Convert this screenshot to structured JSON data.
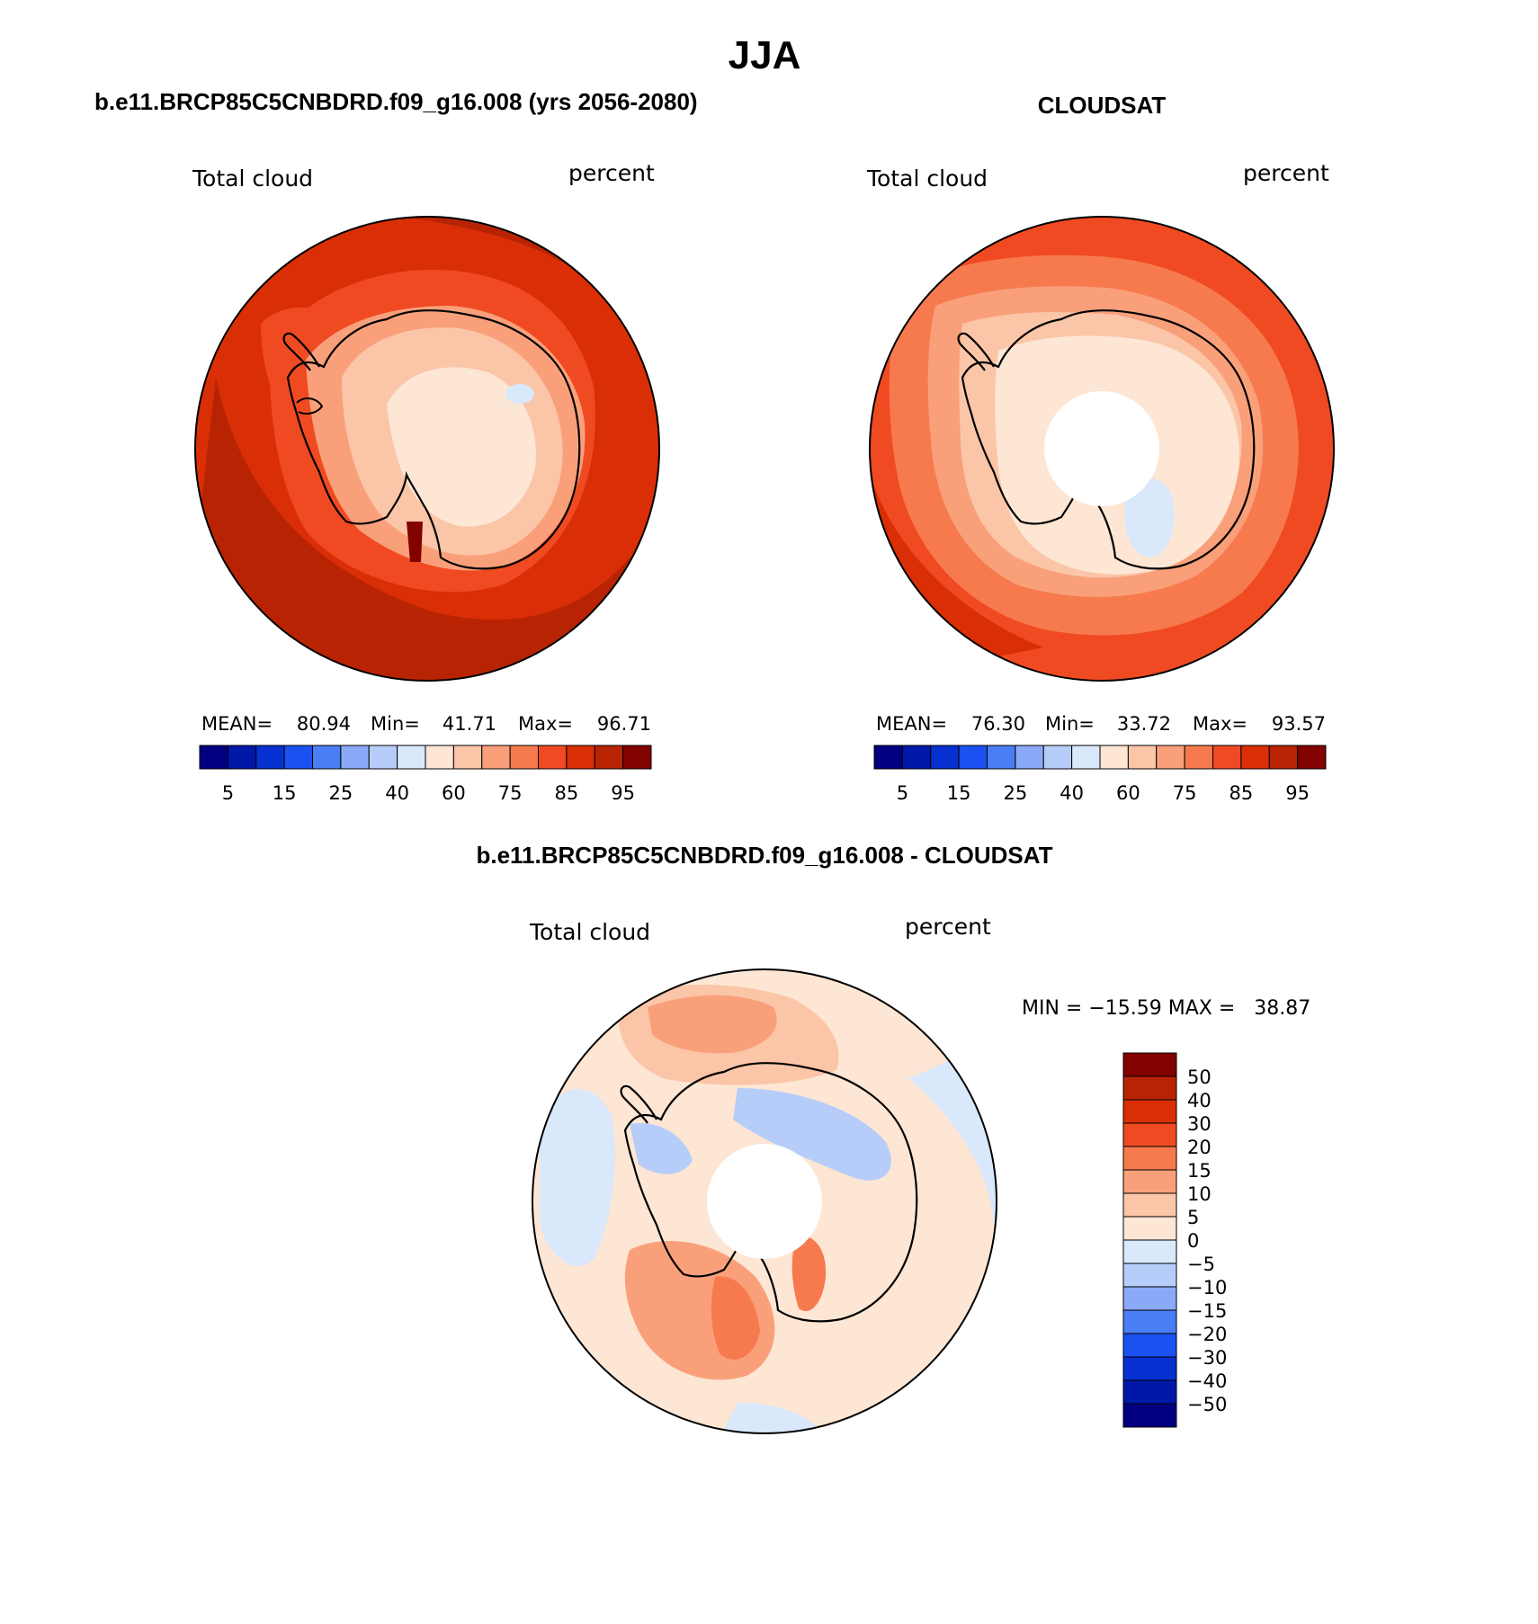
{
  "title": "JJA",
  "panels": [
    {
      "heading": "b.e11.BRCP85C5CNBDRD.f09_g16.008 (yrs 2056-2080)",
      "variable": "Total cloud",
      "units": "percent",
      "stats": {
        "mean_label": "MEAN=",
        "mean": "80.94",
        "min_label": "Min=",
        "min": "41.71",
        "max_label": "Max=",
        "max": "96.71"
      }
    },
    {
      "heading": "CLOUDSAT",
      "variable": "Total cloud",
      "units": "percent",
      "stats": {
        "mean_label": "MEAN=",
        "mean": "76.30",
        "min_label": "Min=",
        "min": "33.72",
        "max_label": "Max=",
        "max": "93.57"
      }
    }
  ],
  "diff_panel": {
    "heading": "b.e11.BRCP85C5CNBDRD.f09_g16.008 - CLOUDSAT",
    "variable": "Total cloud",
    "units": "percent",
    "minmax": "MIN = −15.59 MAX =   38.87"
  },
  "chart_data": [
    {
      "type": "heatmap",
      "projection": "south polar stereographic",
      "title": "b.e11.BRCP85C5CNBDRD.f09_g16.008 (yrs 2056-2080)",
      "variable": "Total cloud",
      "units": "percent",
      "mean": 80.94,
      "min": 41.71,
      "max": 96.71,
      "colorbar_levels": [
        5,
        10,
        15,
        20,
        25,
        30,
        40,
        50,
        60,
        70,
        75,
        80,
        85,
        90,
        95
      ],
      "colorbar_tick_labels": [
        "5",
        "15",
        "25",
        "40",
        "60",
        "75",
        "85",
        "95"
      ],
      "colorbar_colors": [
        "#020080",
        "#0018a8",
        "#0730d0",
        "#1a51f0",
        "#4a7ef5",
        "#8aa9f7",
        "#b7cdf9",
        "#d9e8fb",
        "#fde6d4",
        "#fbc5a8",
        "#f9a07b",
        "#f77a4e",
        "#f04a22",
        "#da2f06",
        "#b82403",
        "#820200"
      ]
    },
    {
      "type": "heatmap",
      "projection": "south polar stereographic",
      "title": "CLOUDSAT",
      "variable": "Total cloud",
      "units": "percent",
      "mean": 76.3,
      "min": 33.72,
      "max": 93.57,
      "colorbar_levels": [
        5,
        10,
        15,
        20,
        25,
        30,
        40,
        50,
        60,
        70,
        75,
        80,
        85,
        90,
        95
      ],
      "colorbar_tick_labels": [
        "5",
        "15",
        "25",
        "40",
        "60",
        "75",
        "85",
        "95"
      ],
      "colorbar_colors": [
        "#020080",
        "#0018a8",
        "#0730d0",
        "#1a51f0",
        "#4a7ef5",
        "#8aa9f7",
        "#b7cdf9",
        "#d9e8fb",
        "#fde6d4",
        "#fbc5a8",
        "#f9a07b",
        "#f77a4e",
        "#f04a22",
        "#da2f06",
        "#b82403",
        "#820200"
      ]
    },
    {
      "type": "heatmap",
      "projection": "south polar stereographic",
      "title": "b.e11.BRCP85C5CNBDRD.f09_g16.008 - CLOUDSAT",
      "variable": "Total cloud",
      "units": "percent",
      "min": -15.59,
      "max": 38.87,
      "colorbar_levels": [
        -50,
        -40,
        -30,
        -20,
        -15,
        -10,
        -5,
        0,
        5,
        10,
        15,
        20,
        30,
        40,
        50
      ],
      "colorbar_tick_labels": [
        "−50",
        "−40",
        "−30",
        "−20",
        "−15",
        "−10",
        "−5",
        "0",
        "5",
        "10",
        "15",
        "20",
        "30",
        "40",
        "50"
      ],
      "colorbar_colors": [
        "#020080",
        "#0018a8",
        "#0730d0",
        "#1a51f0",
        "#4a7ef5",
        "#8aa9f7",
        "#b7cdf9",
        "#d9e8fb",
        "#fde6d4",
        "#fbc5a8",
        "#f9a07b",
        "#f77a4e",
        "#f04a22",
        "#da2f06",
        "#b82403",
        "#820200"
      ]
    }
  ]
}
